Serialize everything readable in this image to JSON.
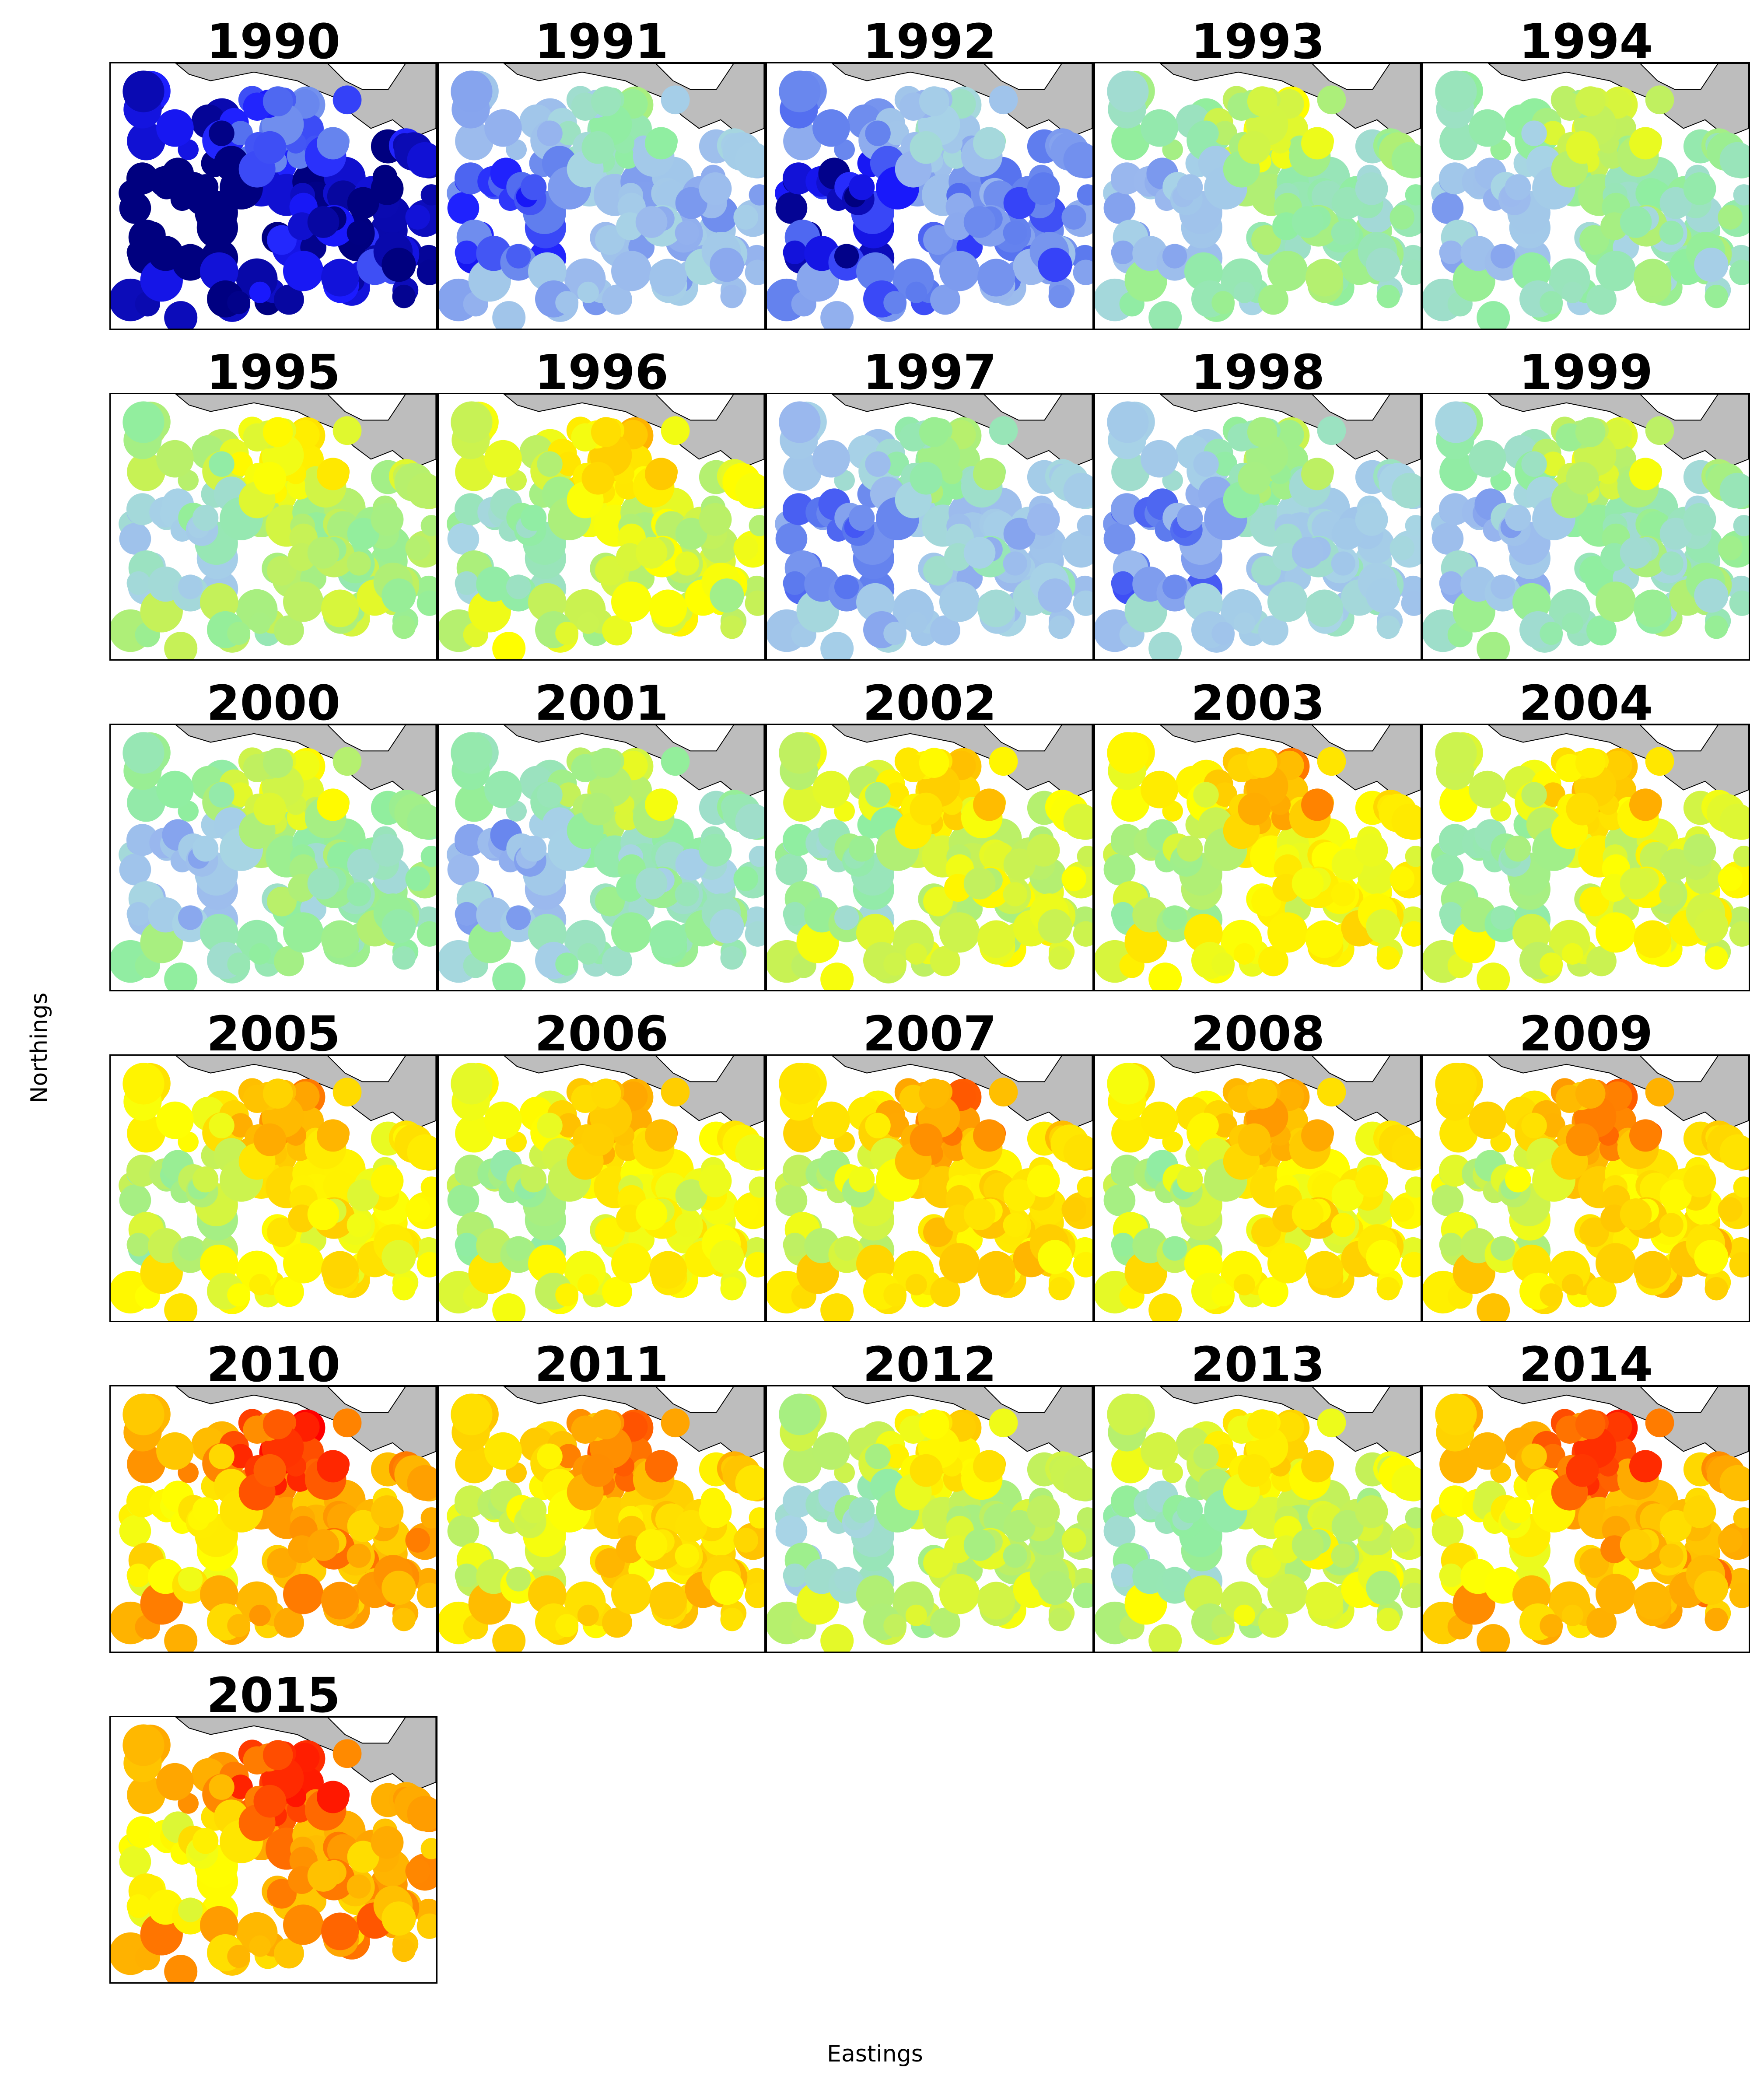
{
  "figure": {
    "xlabel": "Eastings",
    "ylabel": "Northings"
  },
  "colors": {
    "sea": "#ffffff",
    "land_outside": "#bdbdbd",
    "coast": "#000000",
    "scale": [
      "#00007f",
      "#1a1aff",
      "#5a78ee",
      "#9ab8ee",
      "#a8d4e6",
      "#90eea0",
      "#c0f060",
      "#ffff00",
      "#ffd700",
      "#ffa500",
      "#ff4500",
      "#ff0000"
    ]
  },
  "panels": [
    {
      "year": "1990",
      "level": 0.05
    },
    {
      "year": "1991",
      "level": 0.3
    },
    {
      "year": "1992",
      "level": 0.22
    },
    {
      "year": "1993",
      "level": 0.45
    },
    {
      "year": "1994",
      "level": 0.44
    },
    {
      "year": "1995",
      "level": 0.52
    },
    {
      "year": "1996",
      "level": 0.58
    },
    {
      "year": "1997",
      "level": 0.34
    },
    {
      "year": "1998",
      "level": 0.36
    },
    {
      "year": "1999",
      "level": 0.44
    },
    {
      "year": "2000",
      "level": 0.46
    },
    {
      "year": "2001",
      "level": 0.43
    },
    {
      "year": "2002",
      "level": 0.58
    },
    {
      "year": "2003",
      "level": 0.65
    },
    {
      "year": "2004",
      "level": 0.6
    },
    {
      "year": "2005",
      "level": 0.66
    },
    {
      "year": "2006",
      "level": 0.64
    },
    {
      "year": "2007",
      "level": 0.7
    },
    {
      "year": "2008",
      "level": 0.67
    },
    {
      "year": "2009",
      "level": 0.71
    },
    {
      "year": "2010",
      "level": 0.8
    },
    {
      "year": "2011",
      "level": 0.72
    },
    {
      "year": "2012",
      "level": 0.55
    },
    {
      "year": "2013",
      "level": 0.58
    },
    {
      "year": "2014",
      "level": 0.78
    },
    {
      "year": "2015",
      "level": 0.8
    }
  ]
}
